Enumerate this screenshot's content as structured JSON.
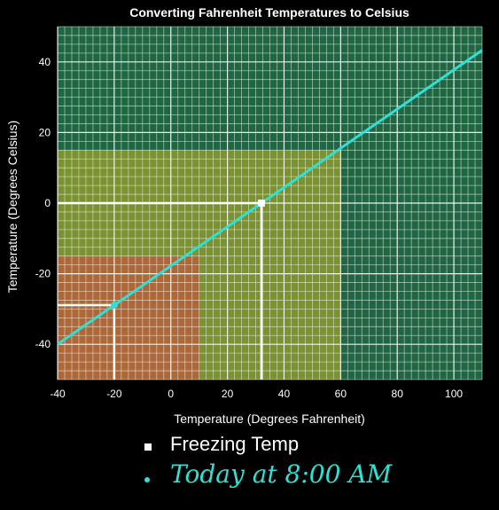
{
  "chart_data": {
    "type": "line",
    "title": "Converting Fahrenheit Temperatures to Celsius",
    "xlabel": "Temperature (Degrees Fahrenheit)",
    "ylabel": "Temperature (Degrees Celsius)",
    "xlim": [
      -40,
      110
    ],
    "ylim": [
      -50,
      50
    ],
    "xticks": [
      -40,
      -20,
      0,
      20,
      40,
      60,
      80,
      100
    ],
    "yticks": [
      -40,
      -20,
      0,
      20,
      40
    ],
    "grid": true,
    "series": [
      {
        "x": [
          -40,
          110
        ],
        "y": [
          -40,
          43.3
        ],
        "color": "#2ee0d6"
      }
    ],
    "regions": [
      {
        "x": [
          -40,
          110
        ],
        "y": [
          -50,
          50
        ],
        "color": "#2a8a5a"
      },
      {
        "x": [
          -40,
          60
        ],
        "y": [
          -50,
          15
        ],
        "color": "#9aa02a"
      },
      {
        "x": [
          -40,
          10
        ],
        "y": [
          -50,
          -15
        ],
        "color": "#c05a3a"
      }
    ],
    "markers": [
      {
        "x": 32,
        "y": 0,
        "shape": "square",
        "color": "#ffffff"
      },
      {
        "x": -20,
        "y": -28.9,
        "shape": "circle",
        "color": "#2ee0d6"
      }
    ]
  },
  "legend": [
    {
      "label": "Freezing Temp",
      "symbol": "square"
    },
    {
      "label": "Today at 8:00 AM",
      "symbol": "circle"
    }
  ]
}
